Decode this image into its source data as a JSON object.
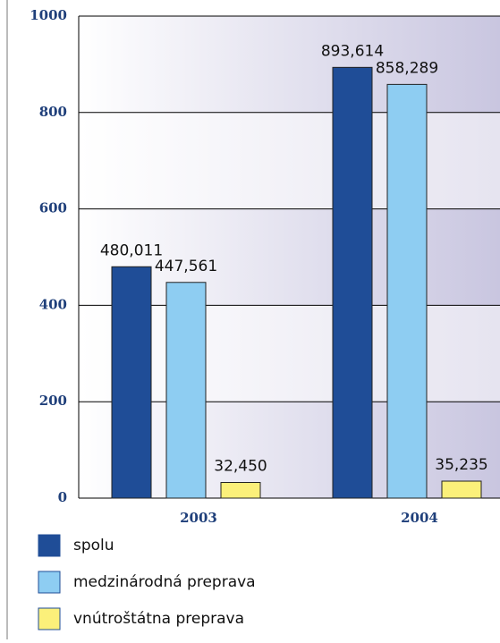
{
  "chart_data": {
    "type": "bar",
    "categories": [
      "2003",
      "2004"
    ],
    "series": [
      {
        "name": "spolu",
        "color": "#1f4d97",
        "values": [
          480.011,
          893.614
        ],
        "value_labels": [
          "480,011",
          "893,614"
        ]
      },
      {
        "name": "medzinárodná preprava",
        "color": "#8ecdf2",
        "values": [
          447.561,
          858.289
        ],
        "value_labels": [
          "447,561",
          "858,289"
        ]
      },
      {
        "name": "vnútroštátna preprava",
        "color": "#fbf07a",
        "values": [
          32.45,
          35.235
        ],
        "value_labels": [
          "32,450",
          "35,235"
        ]
      }
    ],
    "ylim": [
      0,
      1000
    ],
    "yticks": [
      0,
      200,
      400,
      600,
      800,
      1000
    ],
    "grid": true
  }
}
